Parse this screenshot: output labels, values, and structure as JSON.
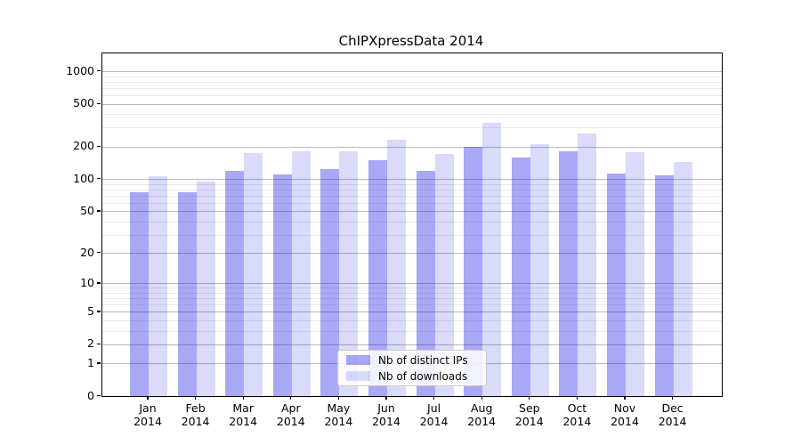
{
  "chart_data": {
    "type": "bar",
    "title": "ChIPXpressData 2014",
    "categories": [
      "Jan",
      "Feb",
      "Mar",
      "Apr",
      "May",
      "Jun",
      "Jul",
      "Aug",
      "Sep",
      "Oct",
      "Nov",
      "Dec"
    ],
    "year_label": "2014",
    "series": [
      {
        "name": "Nb of distinct IPs",
        "color": "rgba(0,0,230,0.34)",
        "values": [
          75,
          75,
          120,
          110,
          123,
          150,
          120,
          200,
          160,
          180,
          113,
          109
        ]
      },
      {
        "name": "Nb of downloads",
        "color": "rgba(0,0,230,0.145)",
        "values": [
          107,
          95,
          175,
          180,
          180,
          230,
          170,
          330,
          210,
          265,
          178,
          145
        ]
      }
    ],
    "y_ticks": [
      0,
      1,
      2,
      5,
      10,
      20,
      50,
      100,
      200,
      500,
      1000
    ],
    "y_scale": "log10(value+1)",
    "ylim": [
      0,
      1460
    ],
    "grid": true,
    "grid_minor": true,
    "legend_position": "inside-bottom-center",
    "axis_color": "#000000",
    "major_grid_color": "#b9b9b9",
    "minor_grid_color": "#e9e9e9"
  }
}
